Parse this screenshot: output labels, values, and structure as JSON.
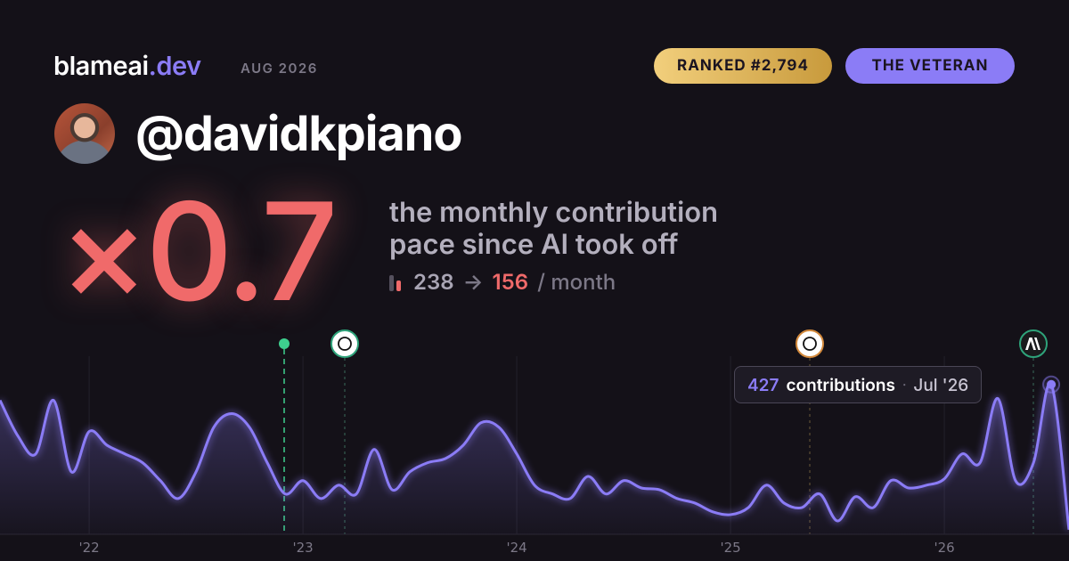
{
  "header": {
    "brand": "blameai",
    "brand_tld": ".dev",
    "date": "AUG 2026",
    "rank_badge": "RANKED #2,794",
    "title_badge": "THE VETERAN"
  },
  "user": {
    "handle": "@davidkpiano"
  },
  "stat": {
    "multiplier": "×0.7",
    "caption_line1": "the monthly contribution",
    "caption_line2": "pace since AI took off",
    "before": 238,
    "arrow": "→",
    "after": 156,
    "unit": "/ month"
  },
  "chart_data": {
    "type": "area",
    "color": "#8b7cf6",
    "x": [
      2021.583,
      2021.667,
      2021.75,
      2021.833,
      2021.917,
      2022,
      2022.083,
      2022.167,
      2022.25,
      2022.333,
      2022.417,
      2022.5,
      2022.583,
      2022.667,
      2022.75,
      2022.833,
      2022.917,
      2023,
      2023.083,
      2023.167,
      2023.25,
      2023.333,
      2023.417,
      2023.5,
      2023.583,
      2023.667,
      2023.75,
      2023.833,
      2023.917,
      2024,
      2024.083,
      2024.167,
      2024.25,
      2024.333,
      2024.417,
      2024.5,
      2024.583,
      2024.667,
      2024.75,
      2024.833,
      2024.917,
      2025,
      2025.083,
      2025.167,
      2025.25,
      2025.333,
      2025.417,
      2025.5,
      2025.583,
      2025.667,
      2025.75,
      2025.833,
      2025.917,
      2026,
      2026.083,
      2026.167,
      2026.25,
      2026.333,
      2026.417,
      2026.5,
      2026.583
    ],
    "values": [
      382,
      280,
      229,
      382,
      178,
      293,
      254,
      229,
      204,
      153,
      102,
      178,
      305,
      344,
      305,
      204,
      115,
      153,
      102,
      140,
      115,
      242,
      127,
      178,
      204,
      216,
      254,
      318,
      305,
      229,
      140,
      115,
      102,
      165,
      115,
      153,
      132,
      127,
      102,
      89,
      64,
      56,
      76,
      140,
      89,
      76,
      115,
      38,
      107,
      76,
      153,
      132,
      140,
      158,
      229,
      204,
      387,
      153,
      204,
      427,
      13
    ],
    "xlim": [
      2021.583,
      2026.583
    ],
    "ylim": [
      0,
      500
    ],
    "xticks": [
      {
        "value": 2022,
        "label": "'22"
      },
      {
        "value": 2023,
        "label": "'23"
      },
      {
        "value": 2024,
        "label": "'24"
      },
      {
        "value": 2025,
        "label": "'25"
      },
      {
        "value": 2026,
        "label": "'26"
      }
    ],
    "grid": true,
    "tooltip": {
      "value": 427,
      "label": "contributions",
      "date": "Jul '26"
    }
  }
}
